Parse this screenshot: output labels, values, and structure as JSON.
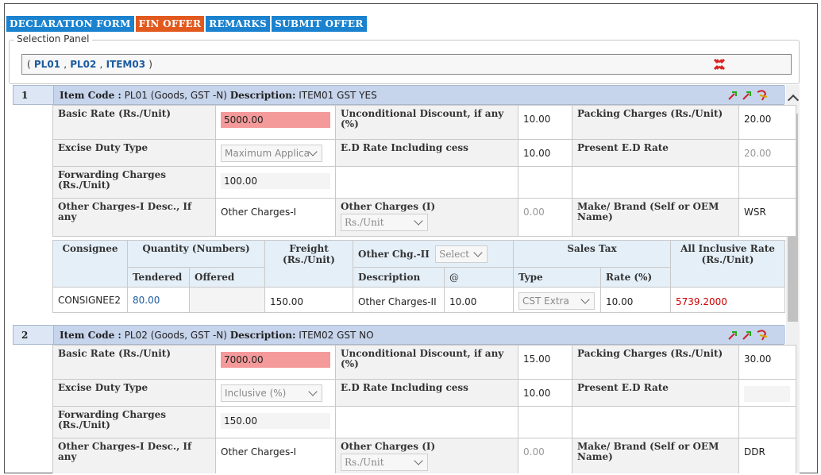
{
  "tabs": [
    {
      "label": "DECLARATION FORM",
      "color": "#1a82cf"
    },
    {
      "label": "FIN OFFER",
      "color": "#e2591e"
    },
    {
      "label": "REMARKS",
      "color": "#1a82cf"
    },
    {
      "label": "SUBMIT OFFER",
      "color": "#1a82cf"
    }
  ],
  "selection_panel": {
    "legend": "Selection Panel",
    "open_paren": "(",
    "items": [
      "PL01",
      "PL02",
      "ITEM03"
    ],
    "sep": ",",
    "close_paren": ")",
    "close_icon": "red-cross-icon"
  },
  "labels": {
    "item_code": "Item Code :",
    "description": "Description:",
    "basic_rate": "Basic Rate (Rs./Unit)",
    "uncond_discount": "Unconditional Discount, if any (%)",
    "packing": "Packing Charges (Rs./Unit)",
    "excise_type": "Excise Duty Type",
    "ed_rate": "E.D Rate Including cess",
    "present_ed": "Present E.D Rate",
    "forwarding": "Forwarding Charges (Rs./Unit)",
    "other_desc": "Other Charges-I Desc., If any",
    "other_charges": "Other Charges (I)",
    "make_brand": "Make/ Brand (Self or OEM Name)",
    "consignee": "Consignee",
    "quantity": "Quantity (Numbers)",
    "freight": "Freight (Rs./Unit)",
    "other_chg2": "Other Chg.-II",
    "sales_tax": "Sales Tax",
    "all_inclusive": "All Inclusive Rate (Rs./Unit)",
    "tendered": "Tendered",
    "offered": "Offered",
    "description_col": "Description",
    "at": "@",
    "type": "Type",
    "rate_pct": "Rate (%)",
    "select_placeholder": "Select",
    "unit_select": "Rs./Unit"
  },
  "items": [
    {
      "num": "1",
      "code": "PL01",
      "code_extra": "(Goods, GST -N)",
      "description": "ITEM01 GST YES",
      "basic_rate": "5000.00",
      "uncond_discount": "10.00",
      "packing": "20.00",
      "excise_type": "Maximum Applica",
      "ed_rate": "10.00",
      "present_ed": "20.00",
      "forwarding": "100.00",
      "other_desc": "Other Charges-I",
      "other_charges": "0.00",
      "make_brand": "WSR",
      "consignee_row": {
        "name": "CONSIGNEE2",
        "tendered": "80.00",
        "offered": "",
        "freight": "150.00",
        "desc": "Other Charges-II",
        "at": "10.00",
        "tax_type": "CST Extra",
        "tax_rate": "10.00",
        "all_inclusive": "5739.2000"
      }
    },
    {
      "num": "2",
      "code": "PL02",
      "code_extra": "(Goods, GST -N)",
      "description": "ITEM02 GST NO",
      "basic_rate": "7000.00",
      "uncond_discount": "15.00",
      "packing": "30.00",
      "excise_type": "Inclusive (%)",
      "ed_rate": "10.00",
      "present_ed": "",
      "forwarding": "150.00",
      "other_desc": "Other Charges-I",
      "other_charges": "0.00",
      "make_brand": "DDR"
    }
  ]
}
